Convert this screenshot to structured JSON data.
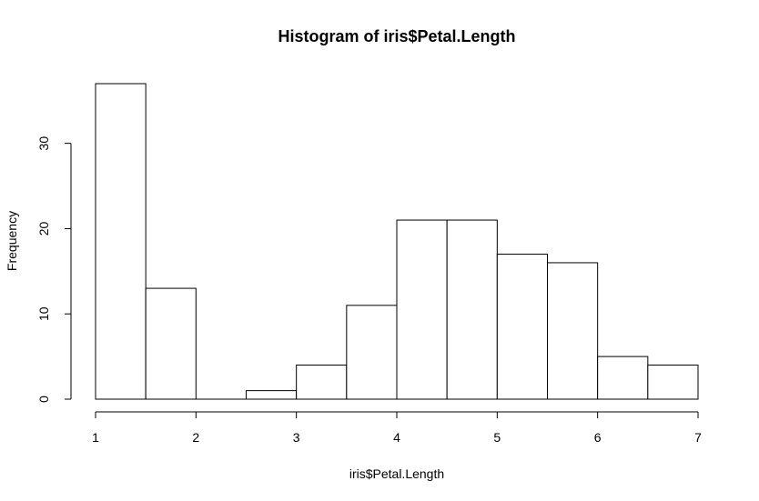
{
  "chart_data": {
    "type": "bar",
    "title": "Histogram of iris$Petal.Length",
    "xlabel": "iris$Petal.Length",
    "ylabel": "Frequency",
    "bins": [
      {
        "start": 1.0,
        "end": 1.5,
        "value": 37
      },
      {
        "start": 1.5,
        "end": 2.0,
        "value": 13
      },
      {
        "start": 2.0,
        "end": 2.5,
        "value": 0
      },
      {
        "start": 2.5,
        "end": 3.0,
        "value": 1
      },
      {
        "start": 3.0,
        "end": 3.5,
        "value": 4
      },
      {
        "start": 3.5,
        "end": 4.0,
        "value": 11
      },
      {
        "start": 4.0,
        "end": 4.5,
        "value": 21
      },
      {
        "start": 4.5,
        "end": 5.0,
        "value": 21
      },
      {
        "start": 5.0,
        "end": 5.5,
        "value": 17
      },
      {
        "start": 5.5,
        "end": 6.0,
        "value": 16
      },
      {
        "start": 6.0,
        "end": 6.5,
        "value": 5
      },
      {
        "start": 6.5,
        "end": 7.0,
        "value": 4
      }
    ],
    "xlim": [
      1,
      7
    ],
    "ylim": [
      0,
      37
    ],
    "x_ticks": [
      "1",
      "2",
      "3",
      "4",
      "5",
      "6",
      "7"
    ],
    "y_ticks": [
      "0",
      "10",
      "20",
      "30"
    ],
    "grid": false,
    "legend": "none",
    "colors": {
      "bar_fill": "#ffffff",
      "bar_stroke": "#000000"
    }
  }
}
